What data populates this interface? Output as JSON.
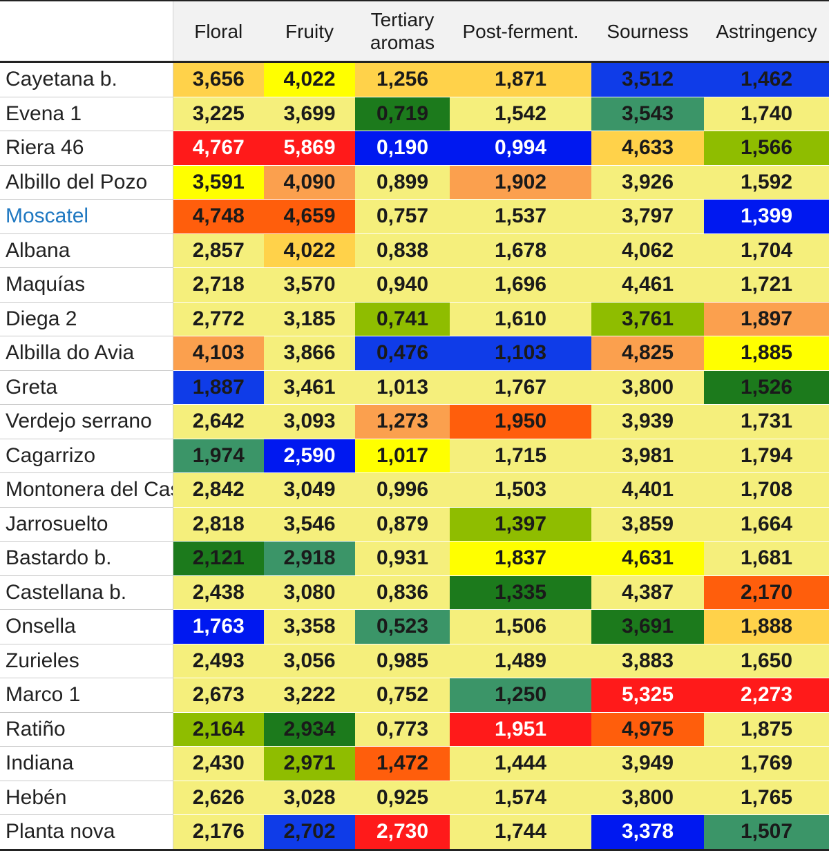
{
  "columns": [
    "",
    "Floral",
    "Fruity",
    "Tertiary\naromas",
    "Post-ferment.",
    "Sourness",
    "Astringency"
  ],
  "colors": {
    "default": "#f5ef7c",
    "yellow": "#ffff00",
    "light_orange": "#ffd24a",
    "orange": "#fba04e",
    "dark_orange": "#ff5e0c",
    "red": "#ff1a1a",
    "blue": "#0018f0",
    "dark_blue": "#0f3ce8",
    "teal": "#3b9568",
    "dark_green": "#1c7a1c",
    "olive": "#8fbd00"
  },
  "rows": [
    {
      "name": "Cayetana b.",
      "cells": [
        [
          "3,656",
          "light_orange"
        ],
        [
          "4,022",
          "yellow"
        ],
        [
          "1,256",
          "light_orange"
        ],
        [
          "1,871",
          "light_orange"
        ],
        [
          "3,512",
          "dark_blue"
        ],
        [
          "1,462",
          "dark_blue"
        ]
      ]
    },
    {
      "name": "Evena 1",
      "cells": [
        [
          "3,225",
          ""
        ],
        [
          "3,699",
          ""
        ],
        [
          "0,719",
          "dark_green"
        ],
        [
          "1,542",
          ""
        ],
        [
          "3,543",
          "teal"
        ],
        [
          "1,740",
          ""
        ]
      ]
    },
    {
      "name": "Riera 46",
      "cells": [
        [
          "4,767",
          "red"
        ],
        [
          "5,869",
          "red"
        ],
        [
          "0,190",
          "blue"
        ],
        [
          "0,994",
          "blue"
        ],
        [
          "4,633",
          "light_orange"
        ],
        [
          "1,566",
          "olive"
        ]
      ]
    },
    {
      "name": "Albillo del Pozo",
      "cells": [
        [
          "3,591",
          "yellow"
        ],
        [
          "4,090",
          "orange"
        ],
        [
          "0,899",
          ""
        ],
        [
          "1,902",
          "orange"
        ],
        [
          "3,926",
          ""
        ],
        [
          "1,592",
          ""
        ]
      ]
    },
    {
      "name": "Moscatel",
      "link": true,
      "cells": [
        [
          "4,748",
          "dark_orange"
        ],
        [
          "4,659",
          "dark_orange"
        ],
        [
          "0,757",
          ""
        ],
        [
          "1,537",
          ""
        ],
        [
          "3,797",
          ""
        ],
        [
          "1,399",
          "blue"
        ]
      ]
    },
    {
      "name": "Albana",
      "cells": [
        [
          "2,857",
          ""
        ],
        [
          "4,022",
          "light_orange"
        ],
        [
          "0,838",
          ""
        ],
        [
          "1,678",
          ""
        ],
        [
          "4,062",
          ""
        ],
        [
          "1,704",
          ""
        ]
      ]
    },
    {
      "name": "Maquías",
      "cells": [
        [
          "2,718",
          ""
        ],
        [
          "3,570",
          ""
        ],
        [
          "0,940",
          ""
        ],
        [
          "1,696",
          ""
        ],
        [
          "4,461",
          ""
        ],
        [
          "1,721",
          ""
        ]
      ]
    },
    {
      "name": "Diega 2",
      "cells": [
        [
          "2,772",
          ""
        ],
        [
          "3,185",
          ""
        ],
        [
          "0,741",
          "olive"
        ],
        [
          "1,610",
          ""
        ],
        [
          "3,761",
          "olive"
        ],
        [
          "1,897",
          "orange"
        ]
      ]
    },
    {
      "name": "Albilla do Avia",
      "cells": [
        [
          "4,103",
          "orange"
        ],
        [
          "3,866",
          ""
        ],
        [
          "0,476",
          "dark_blue"
        ],
        [
          "1,103",
          "dark_blue"
        ],
        [
          "4,825",
          "orange"
        ],
        [
          "1,885",
          "yellow"
        ]
      ]
    },
    {
      "name": "Greta",
      "cells": [
        [
          "1,887",
          "dark_blue"
        ],
        [
          "3,461",
          ""
        ],
        [
          "1,013",
          ""
        ],
        [
          "1,767",
          ""
        ],
        [
          "3,800",
          ""
        ],
        [
          "1,526",
          "dark_green"
        ]
      ]
    },
    {
      "name": "Verdejo serrano",
      "cells": [
        [
          "2,642",
          ""
        ],
        [
          "3,093",
          ""
        ],
        [
          "1,273",
          "orange"
        ],
        [
          "1,950",
          "dark_orange"
        ],
        [
          "3,939",
          ""
        ],
        [
          "1,731",
          ""
        ]
      ]
    },
    {
      "name": "Cagarrizo",
      "cells": [
        [
          "1,974",
          "teal"
        ],
        [
          "2,590",
          "blue"
        ],
        [
          "1,017",
          "yellow"
        ],
        [
          "1,715",
          ""
        ],
        [
          "3,981",
          ""
        ],
        [
          "1,794",
          ""
        ]
      ]
    },
    {
      "name": "Montonera del Casar",
      "cells": [
        [
          "2,842",
          ""
        ],
        [
          "3,049",
          ""
        ],
        [
          "0,996",
          ""
        ],
        [
          "1,503",
          ""
        ],
        [
          "4,401",
          ""
        ],
        [
          "1,708",
          ""
        ]
      ]
    },
    {
      "name": "Jarrosuelto",
      "cells": [
        [
          "2,818",
          ""
        ],
        [
          "3,546",
          ""
        ],
        [
          "0,879",
          ""
        ],
        [
          "1,397",
          "olive"
        ],
        [
          "3,859",
          ""
        ],
        [
          "1,664",
          ""
        ]
      ]
    },
    {
      "name": "Bastardo b.",
      "cells": [
        [
          "2,121",
          "dark_green"
        ],
        [
          "2,918",
          "teal"
        ],
        [
          "0,931",
          ""
        ],
        [
          "1,837",
          "yellow"
        ],
        [
          "4,631",
          "yellow"
        ],
        [
          "1,681",
          ""
        ]
      ]
    },
    {
      "name": "Castellana b.",
      "cells": [
        [
          "2,438",
          ""
        ],
        [
          "3,080",
          ""
        ],
        [
          "0,836",
          ""
        ],
        [
          "1,335",
          "dark_green"
        ],
        [
          "4,387",
          ""
        ],
        [
          "2,170",
          "dark_orange"
        ]
      ]
    },
    {
      "name": "Onsella",
      "cells": [
        [
          "1,763",
          "blue"
        ],
        [
          "3,358",
          ""
        ],
        [
          "0,523",
          "teal"
        ],
        [
          "1,506",
          ""
        ],
        [
          "3,691",
          "dark_green"
        ],
        [
          "1,888",
          "light_orange"
        ]
      ]
    },
    {
      "name": "Zurieles",
      "cells": [
        [
          "2,493",
          ""
        ],
        [
          "3,056",
          ""
        ],
        [
          "0,985",
          ""
        ],
        [
          "1,489",
          ""
        ],
        [
          "3,883",
          ""
        ],
        [
          "1,650",
          ""
        ]
      ]
    },
    {
      "name": "Marco 1",
      "cells": [
        [
          "2,673",
          ""
        ],
        [
          "3,222",
          ""
        ],
        [
          "0,752",
          ""
        ],
        [
          "1,250",
          "teal"
        ],
        [
          "5,325",
          "red"
        ],
        [
          "2,273",
          "red"
        ]
      ]
    },
    {
      "name": "Ratiño",
      "cells": [
        [
          "2,164",
          "olive"
        ],
        [
          "2,934",
          "dark_green"
        ],
        [
          "0,773",
          ""
        ],
        [
          "1,951",
          "red"
        ],
        [
          "4,975",
          "dark_orange"
        ],
        [
          "1,875",
          ""
        ]
      ]
    },
    {
      "name": "Indiana",
      "cells": [
        [
          "2,430",
          ""
        ],
        [
          "2,971",
          "olive"
        ],
        [
          "1,472",
          "dark_orange"
        ],
        [
          "1,444",
          ""
        ],
        [
          "3,949",
          ""
        ],
        [
          "1,769",
          ""
        ]
      ]
    },
    {
      "name": "Hebén",
      "cells": [
        [
          "2,626",
          ""
        ],
        [
          "3,028",
          ""
        ],
        [
          "0,925",
          ""
        ],
        [
          "1,574",
          ""
        ],
        [
          "3,800",
          ""
        ],
        [
          "1,765",
          ""
        ]
      ]
    },
    {
      "name": "Planta nova",
      "cells": [
        [
          "2,176",
          ""
        ],
        [
          "2,702",
          "dark_blue"
        ],
        [
          "2,730",
          "red"
        ],
        [
          "1,744",
          ""
        ],
        [
          "3,378",
          "blue"
        ],
        [
          "1,507",
          "teal"
        ]
      ]
    }
  ]
}
